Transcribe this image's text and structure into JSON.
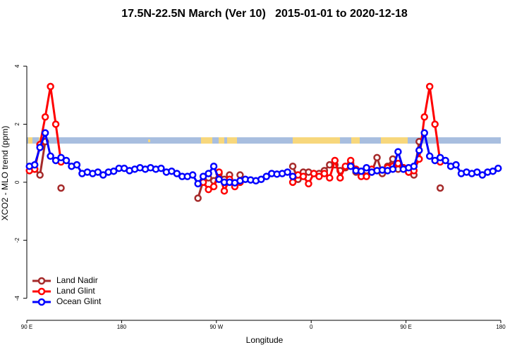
{
  "chart_data": {
    "type": "line",
    "title": "17.5N-22.5N March (Ver 10)   2015-01-01 to 2020-12-18",
    "x_label": "Longitude",
    "y_label": "XCO2 - MLO trend (ppm)",
    "xlim": [
      90,
      540
    ],
    "ylim": [
      -4.76,
      5.36
    ],
    "xticks": [
      {
        "value": 90,
        "label": "90 E"
      },
      180,
      {
        "value": 270,
        "label": "90 W"
      },
      {
        "value": 360,
        "label": "0"
      },
      {
        "value": 450,
        "label": "90 E"
      },
      {
        "value": 540,
        "label": "180"
      }
    ],
    "yticks": [
      -4,
      -2,
      0,
      2,
      4
    ],
    "legend": "bottom-left",
    "x": [
      92.5,
      97.5,
      102.5,
      107.5,
      112.5,
      117.5,
      122.5,
      127.5,
      132.5,
      137.5,
      142.5,
      147.5,
      152.5,
      157.5,
      162.5,
      167.5,
      172.5,
      177.5,
      182.5,
      187.5,
      192.5,
      197.5,
      202.5,
      207.5,
      212.5,
      217.5,
      222.5,
      227.5,
      232.5,
      237.5,
      242.5,
      247.5,
      252.5,
      257.5,
      262.5,
      267.5,
      272.5,
      277.5,
      282.5,
      287.5,
      292.5,
      297.5,
      302.5,
      307.5,
      312.5,
      317.5,
      322.5,
      327.5,
      332.5,
      337.5,
      342.5,
      347.5,
      352.5,
      357.5,
      362.5,
      367.5,
      372.5,
      377.5,
      382.5,
      387.5,
      392.5,
      397.5,
      402.5,
      407.5,
      412.5,
      417.5,
      422.5,
      427.5,
      432.5,
      437.5,
      442.5,
      447.5,
      452.5,
      457.5,
      462.5,
      467.5,
      472.5,
      477.5,
      482.5,
      487.5,
      492.5,
      497.5,
      502.5,
      507.5,
      512.5,
      517.5,
      522.5,
      527.5,
      532.5,
      537.5
    ],
    "series": [
      {
        "name": "Land Nadir",
        "color": "#a52a2a",
        "values": [
          null,
          0.45,
          0.25,
          1.4,
          null,
          null,
          -0.2,
          null,
          null,
          null,
          null,
          null,
          null,
          null,
          null,
          null,
          null,
          null,
          null,
          null,
          null,
          null,
          null,
          null,
          null,
          null,
          null,
          null,
          null,
          null,
          null,
          null,
          -0.55,
          0.05,
          0.15,
          0.05,
          0.3,
          0.1,
          0.25,
          null,
          0.25,
          null,
          null,
          null,
          null,
          null,
          null,
          null,
          null,
          null,
          0.55,
          0.1,
          0.35,
          0.35,
          0.3,
          0.3,
          0.4,
          0.6,
          0.6,
          0.4,
          0.5,
          0.65,
          0.35,
          0.3,
          0.4,
          0.35,
          0.85,
          0.3,
          0.55,
          0.8,
          0.45,
          0.5,
          0.35,
          0.25,
          1.4,
          null,
          null,
          null,
          -0.2,
          null,
          null,
          null,
          null,
          null,
          null,
          null,
          null,
          null,
          null,
          null
        ]
      },
      {
        "name": "Land Glint",
        "color": "#ff0000",
        "values": [
          0.4,
          0.45,
          1.3,
          2.25,
          3.3,
          2.0,
          0.7,
          null,
          null,
          null,
          null,
          null,
          null,
          null,
          null,
          null,
          null,
          null,
          null,
          null,
          null,
          null,
          null,
          null,
          null,
          null,
          null,
          null,
          null,
          null,
          null,
          null,
          null,
          0.0,
          -0.25,
          -0.15,
          0.35,
          -0.3,
          0.1,
          -0.15,
          0.0,
          null,
          null,
          null,
          null,
          null,
          null,
          null,
          null,
          null,
          0.0,
          0.25,
          0.2,
          -0.05,
          0.3,
          0.2,
          0.3,
          0.15,
          0.75,
          0.15,
          0.55,
          0.75,
          0.45,
          0.2,
          0.2,
          0.45,
          null,
          null,
          0.5,
          0.55,
          0.65,
          0.5,
          0.35,
          0.4,
          0.8,
          2.25,
          3.3,
          2.0,
          0.7,
          null,
          null,
          null,
          null,
          null,
          null,
          null,
          null,
          null,
          null,
          null
        ]
      },
      {
        "name": "Ocean Glint",
        "color": "#0000ff",
        "values": [
          0.55,
          0.6,
          1.2,
          1.7,
          0.9,
          0.75,
          0.85,
          0.75,
          0.55,
          0.6,
          0.3,
          0.35,
          0.3,
          0.35,
          0.25,
          0.35,
          0.38,
          0.48,
          0.48,
          0.4,
          0.45,
          0.5,
          0.45,
          0.5,
          0.45,
          0.48,
          0.35,
          0.38,
          0.3,
          0.2,
          0.2,
          0.25,
          -0.05,
          0.2,
          0.3,
          0.55,
          0.1,
          0.0,
          0.0,
          -0.02,
          0.05,
          0.1,
          0.08,
          0.05,
          0.1,
          0.2,
          0.3,
          0.28,
          0.3,
          0.35,
          0.2,
          null,
          null,
          null,
          null,
          null,
          null,
          null,
          null,
          null,
          null,
          0.55,
          0.4,
          0.38,
          0.5,
          0.35,
          0.4,
          0.42,
          0.4,
          0.45,
          1.05,
          0.45,
          0.5,
          0.55,
          1.1,
          1.7,
          0.9,
          0.75,
          0.85,
          0.75,
          0.55,
          0.6,
          0.3,
          0.35,
          0.3,
          0.35,
          0.25,
          0.35,
          0.38,
          0.48
        ]
      }
    ]
  }
}
